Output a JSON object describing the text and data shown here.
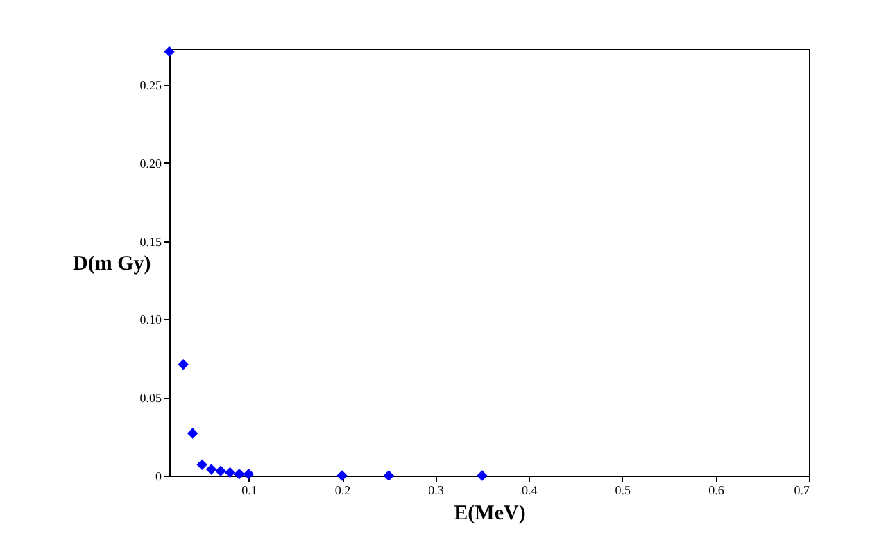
{
  "chart_data": {
    "type": "scatter",
    "xlabel": "E(MeV)",
    "ylabel": "D(m Gy)",
    "x": [
      0.015,
      0.03,
      0.04,
      0.05,
      0.06,
      0.07,
      0.08,
      0.09,
      0.1,
      0.2,
      0.25,
      0.35
    ],
    "series": [
      {
        "color": "#0000ff",
        "values": [
          0.271,
          0.071,
          0.027,
          0.007,
          0.004,
          0.003,
          0.002,
          0.001,
          0.001,
          0,
          0,
          0
        ]
      }
    ],
    "xlim": [
      0.015,
      0.7
    ],
    "ylim": [
      0,
      0.273
    ],
    "xticks": [
      0.1,
      0.2,
      0.3,
      0.4,
      0.5,
      0.6,
      0.7
    ],
    "yticks": [
      0,
      0.05,
      {
        "value": 0.1,
        "label": "0.10"
      },
      0.15,
      {
        "value": 0.2,
        "label": "0.20"
      },
      0.25
    ],
    "marker": "diamond",
    "grid": false
  }
}
